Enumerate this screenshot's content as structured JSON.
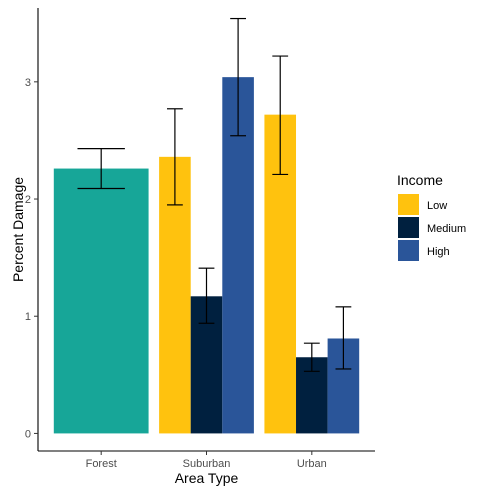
{
  "chart_data": {
    "type": "bar",
    "title": "",
    "xlabel": "Area Type",
    "ylabel": "Percent Damage",
    "categories": [
      "Forest",
      "Suburban",
      "Urban"
    ],
    "ylim": [
      -0.15,
      3.63
    ],
    "yticks": [
      0,
      1,
      2,
      3
    ],
    "grid": false,
    "legend": {
      "title": "Income",
      "position": "right"
    },
    "colors": {
      "forest": "#17A698",
      "Low": "#FFC20E",
      "Medium": "#00203F",
      "High": "#2A5599"
    },
    "bars": [
      {
        "category": "Forest",
        "group": null,
        "value": 2.26,
        "err_low": 2.09,
        "err_high": 2.43
      },
      {
        "category": "Suburban",
        "group": "Low",
        "value": 2.36,
        "err_low": 1.95,
        "err_high": 2.77
      },
      {
        "category": "Suburban",
        "group": "Medium",
        "value": 1.17,
        "err_low": 0.94,
        "err_high": 1.41
      },
      {
        "category": "Suburban",
        "group": "High",
        "value": 3.04,
        "err_low": 2.54,
        "err_high": 3.54
      },
      {
        "category": "Urban",
        "group": "Low",
        "value": 2.72,
        "err_low": 2.21,
        "err_high": 3.22
      },
      {
        "category": "Urban",
        "group": "Medium",
        "value": 0.65,
        "err_low": 0.53,
        "err_high": 0.77
      },
      {
        "category": "Urban",
        "group": "High",
        "value": 0.81,
        "err_low": 0.55,
        "err_high": 1.08
      }
    ],
    "series": [
      {
        "name": "Low"
      },
      {
        "name": "Medium"
      },
      {
        "name": "High"
      }
    ]
  }
}
